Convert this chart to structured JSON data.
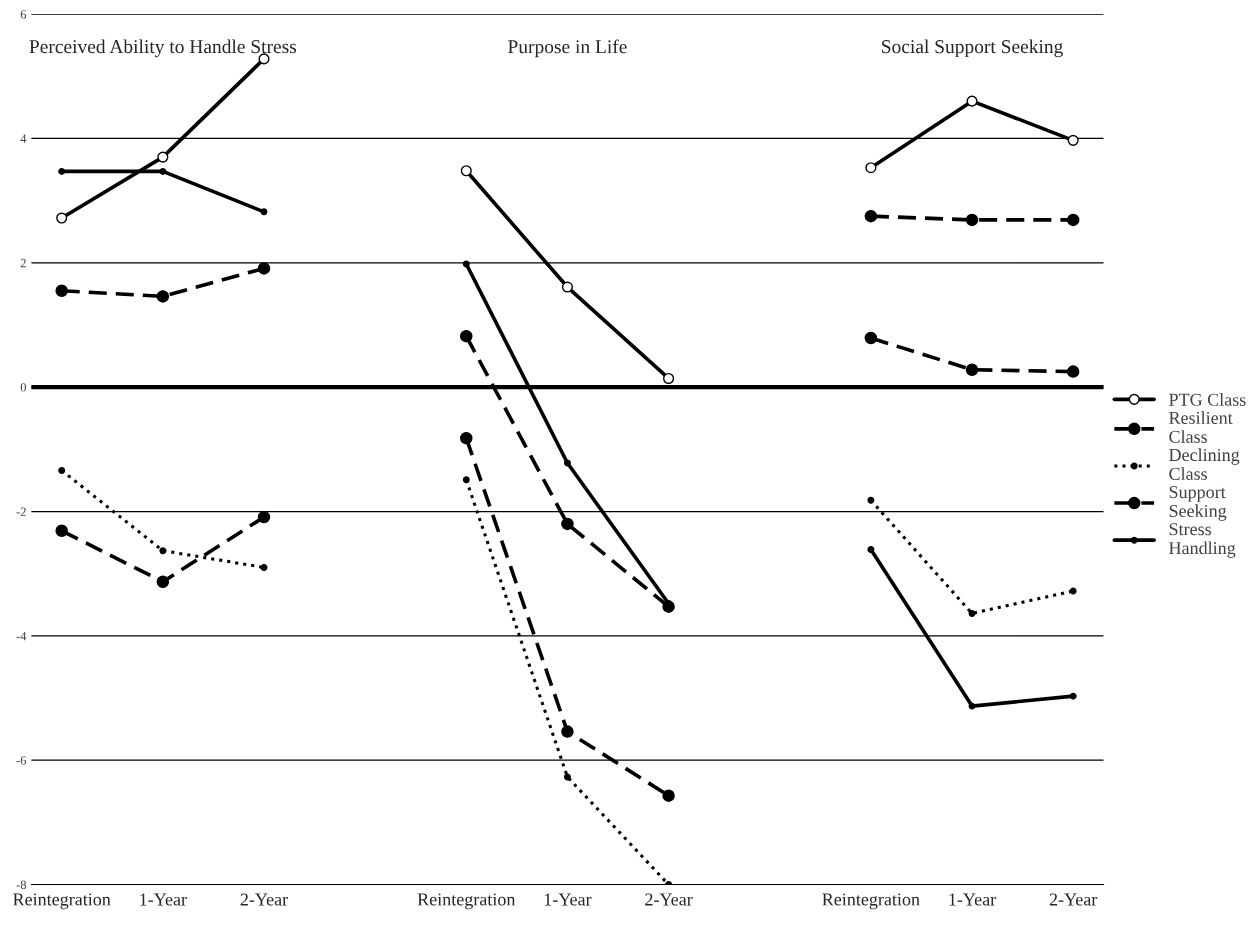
{
  "chart_data": {
    "type": "line",
    "categories": [
      "Reintegration",
      "1-Year",
      "2-Year",
      null,
      "Reintegration",
      "1-Year",
      "2-Year",
      null,
      "Reintegration",
      "1-Year",
      "2-Year"
    ],
    "series": [
      {
        "name": "PTG Class",
        "color": "#000000",
        "line_style": "solid",
        "marker": "open circle",
        "values": [
          2.72,
          3.7,
          5.28,
          null,
          3.48,
          1.61,
          0.14,
          null,
          3.53,
          4.6,
          3.97
        ]
      },
      {
        "name": "Resilient Class",
        "color": "#000000",
        "line_style": "dashed",
        "marker": "circle",
        "values": [
          1.55,
          1.46,
          1.91,
          null,
          0.82,
          -2.2,
          -3.53,
          null,
          0.79,
          0.28,
          0.25
        ]
      },
      {
        "name": "Declining Class",
        "color": "#000000",
        "line_style": "dotted",
        "marker": "dot",
        "values": [
          -1.34,
          -2.63,
          -2.9,
          null,
          -1.49,
          -6.27,
          -8.0,
          null,
          -1.82,
          -3.64,
          -3.28
        ]
      },
      {
        "name": "Support Seeking",
        "color": "#000000",
        "line_style": "dashed",
        "marker": "circle",
        "values": [
          -2.31,
          -3.13,
          -2.09,
          null,
          -0.82,
          -5.54,
          -6.57,
          null,
          2.75,
          2.69,
          2.69
        ]
      },
      {
        "name": "Stress Handling",
        "color": "#000000",
        "line_style": "solid",
        "marker": "dot",
        "values": [
          3.47,
          3.47,
          2.82,
          null,
          1.98,
          -1.22,
          -3.48,
          null,
          -2.61,
          -5.13,
          -4.97
        ]
      }
    ],
    "annotations": [
      "Perceived Ability to Handle Stress",
      "Purpose in Life",
      "Social Support Seeking"
    ],
    "ylim": [
      -8,
      6
    ],
    "yticks": [
      -8,
      -6,
      -4,
      -2,
      0,
      2,
      4,
      6
    ],
    "ref_lines": [
      {
        "axis": "y",
        "value": 0,
        "color": "#000000"
      }
    ],
    "grid": "y",
    "legend": "right"
  }
}
